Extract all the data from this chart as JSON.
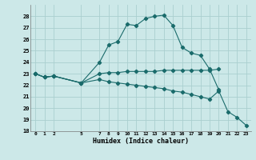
{
  "bg_color": "#cce8e8",
  "grid_color": "#aacfcf",
  "line_color": "#1a6b6b",
  "xlabel": "Humidex (Indice chaleur)",
  "ylim": [
    18,
    29
  ],
  "xlim": [
    -0.5,
    23.5
  ],
  "yticks": [
    18,
    19,
    20,
    21,
    22,
    23,
    24,
    25,
    26,
    27,
    28
  ],
  "xticks": [
    0,
    1,
    2,
    5,
    7,
    8,
    9,
    10,
    11,
    12,
    13,
    14,
    15,
    16,
    17,
    18,
    19,
    20,
    21,
    22,
    23
  ],
  "series1_x": [
    0,
    1,
    2,
    5,
    7,
    8,
    9,
    10,
    11,
    12,
    13,
    14,
    15,
    16,
    17,
    18,
    19,
    20
  ],
  "series1_y": [
    23.0,
    22.7,
    22.8,
    22.2,
    24.0,
    25.5,
    25.8,
    27.3,
    27.2,
    27.8,
    28.0,
    28.1,
    27.2,
    25.3,
    24.8,
    24.6,
    23.4,
    21.6
  ],
  "series2_x": [
    0,
    1,
    2,
    5,
    7,
    8,
    9,
    10,
    11,
    12,
    13,
    14,
    15,
    16,
    17,
    18,
    19,
    20
  ],
  "series2_y": [
    23.0,
    22.7,
    22.8,
    22.2,
    23.0,
    23.1,
    23.1,
    23.2,
    23.2,
    23.2,
    23.2,
    23.3,
    23.3,
    23.3,
    23.3,
    23.3,
    23.3,
    23.4
  ],
  "series3_x": [
    0,
    1,
    2,
    5,
    7,
    8,
    9,
    10,
    11,
    12,
    13,
    14,
    15,
    16,
    17,
    18,
    19,
    20,
    21,
    22,
    23
  ],
  "series3_y": [
    23.0,
    22.7,
    22.8,
    22.2,
    22.5,
    22.3,
    22.2,
    22.1,
    22.0,
    21.9,
    21.8,
    21.7,
    21.5,
    21.4,
    21.2,
    21.0,
    20.8,
    21.5,
    19.7,
    19.2,
    18.5
  ],
  "figsize": [
    3.2,
    2.0
  ],
  "dpi": 100
}
